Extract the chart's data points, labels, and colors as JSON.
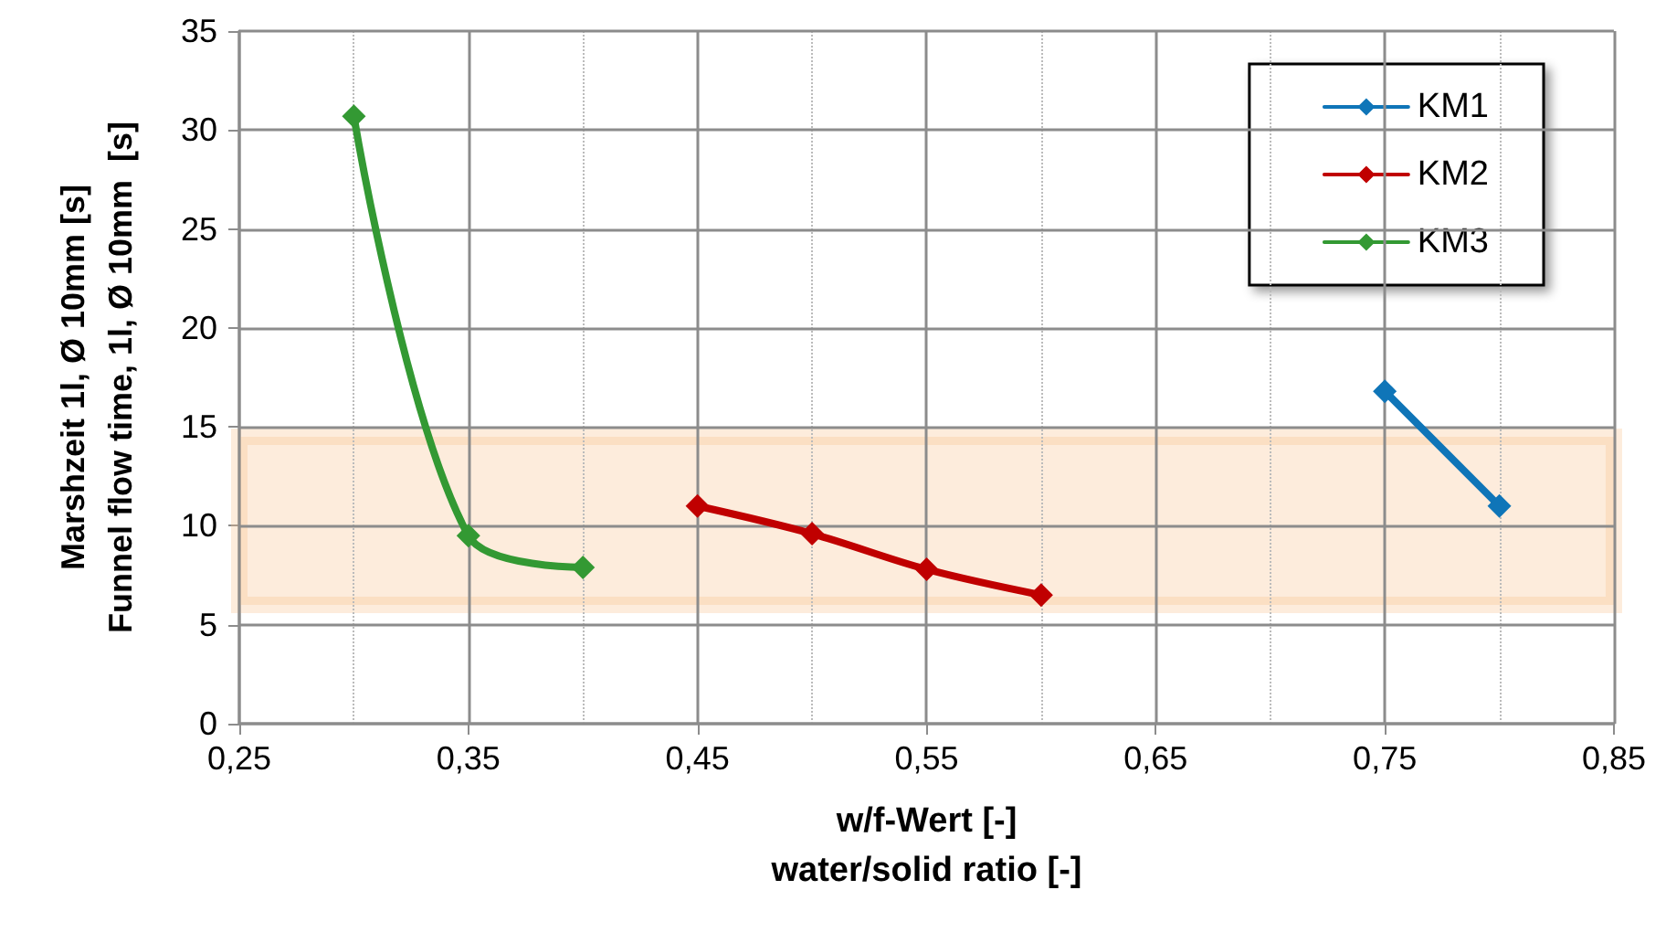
{
  "chart_data": {
    "type": "line",
    "xlabel": "w/f-Wert [-]\nwater/solid ratio [-]",
    "ylabel": "Marshzeit 1l, Ø 10mm [s]\nFunnel flow time, 1l, Ø 10mm  [s]",
    "series": [
      {
        "name": "KM1",
        "color": "#0f75b8",
        "x": [
          0.75,
          0.8
        ],
        "values": [
          16.8,
          11.0
        ]
      },
      {
        "name": "KM2",
        "color": "#c00000",
        "x": [
          0.45,
          0.5,
          0.55,
          0.6
        ],
        "values": [
          11.0,
          9.6,
          7.8,
          6.5
        ]
      },
      {
        "name": "KM3",
        "color": "#339933",
        "x": [
          0.3,
          0.35,
          0.4
        ],
        "values": [
          30.7,
          9.5,
          7.9
        ]
      }
    ],
    "xlim": [
      0.25,
      0.85
    ],
    "xticks": [
      {
        "value": 0.25,
        "label": "0,25"
      },
      {
        "value": 0.3,
        "label": null
      },
      {
        "value": 0.35,
        "label": "0,35"
      },
      {
        "value": 0.4,
        "label": null
      },
      {
        "value": 0.45,
        "label": "0,45"
      },
      {
        "value": 0.5,
        "label": null
      },
      {
        "value": 0.55,
        "label": "0,55"
      },
      {
        "value": 0.6,
        "label": null
      },
      {
        "value": 0.65,
        "label": "0,65"
      },
      {
        "value": 0.7,
        "label": null
      },
      {
        "value": 0.75,
        "label": "0,75"
      },
      {
        "value": 0.8,
        "label": null
      },
      {
        "value": 0.85,
        "label": "0,85"
      }
    ],
    "ylim": [
      0,
      35
    ],
    "yticks": [
      0,
      5,
      10,
      15,
      20,
      25,
      30,
      35
    ],
    "bands": [
      {
        "axis": "y",
        "from": 6,
        "to": 14.5,
        "color": "#f9c08a"
      }
    ],
    "grid": true,
    "legend": "top right",
    "marker": "diamond",
    "line_style": "solid"
  }
}
